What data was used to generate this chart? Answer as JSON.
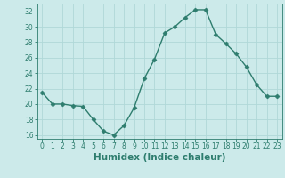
{
  "x": [
    0,
    1,
    2,
    3,
    4,
    5,
    6,
    7,
    8,
    9,
    10,
    11,
    12,
    13,
    14,
    15,
    16,
    17,
    18,
    19,
    20,
    21,
    22,
    23
  ],
  "y": [
    21.5,
    20.0,
    20.0,
    19.8,
    19.7,
    18.0,
    16.5,
    16.0,
    17.2,
    19.5,
    23.3,
    25.8,
    29.2,
    30.0,
    31.2,
    32.2,
    32.2,
    29.0,
    27.8,
    26.5,
    24.8,
    22.5,
    21.0,
    21.0
  ],
  "line_color": "#2e7d6e",
  "marker": "D",
  "marker_size": 2.5,
  "bg_color": "#cceaea",
  "grid_color": "#b0d8d8",
  "xlabel": "Humidex (Indice chaleur)",
  "xlim": [
    -0.5,
    23.5
  ],
  "ylim": [
    15.5,
    33.0
  ],
  "yticks": [
    16,
    18,
    20,
    22,
    24,
    26,
    28,
    30,
    32
  ],
  "xticks": [
    0,
    1,
    2,
    3,
    4,
    5,
    6,
    7,
    8,
    9,
    10,
    11,
    12,
    13,
    14,
    15,
    16,
    17,
    18,
    19,
    20,
    21,
    22,
    23
  ],
  "tick_fontsize": 5.5,
  "label_fontsize": 7.5,
  "line_width": 1.0
}
